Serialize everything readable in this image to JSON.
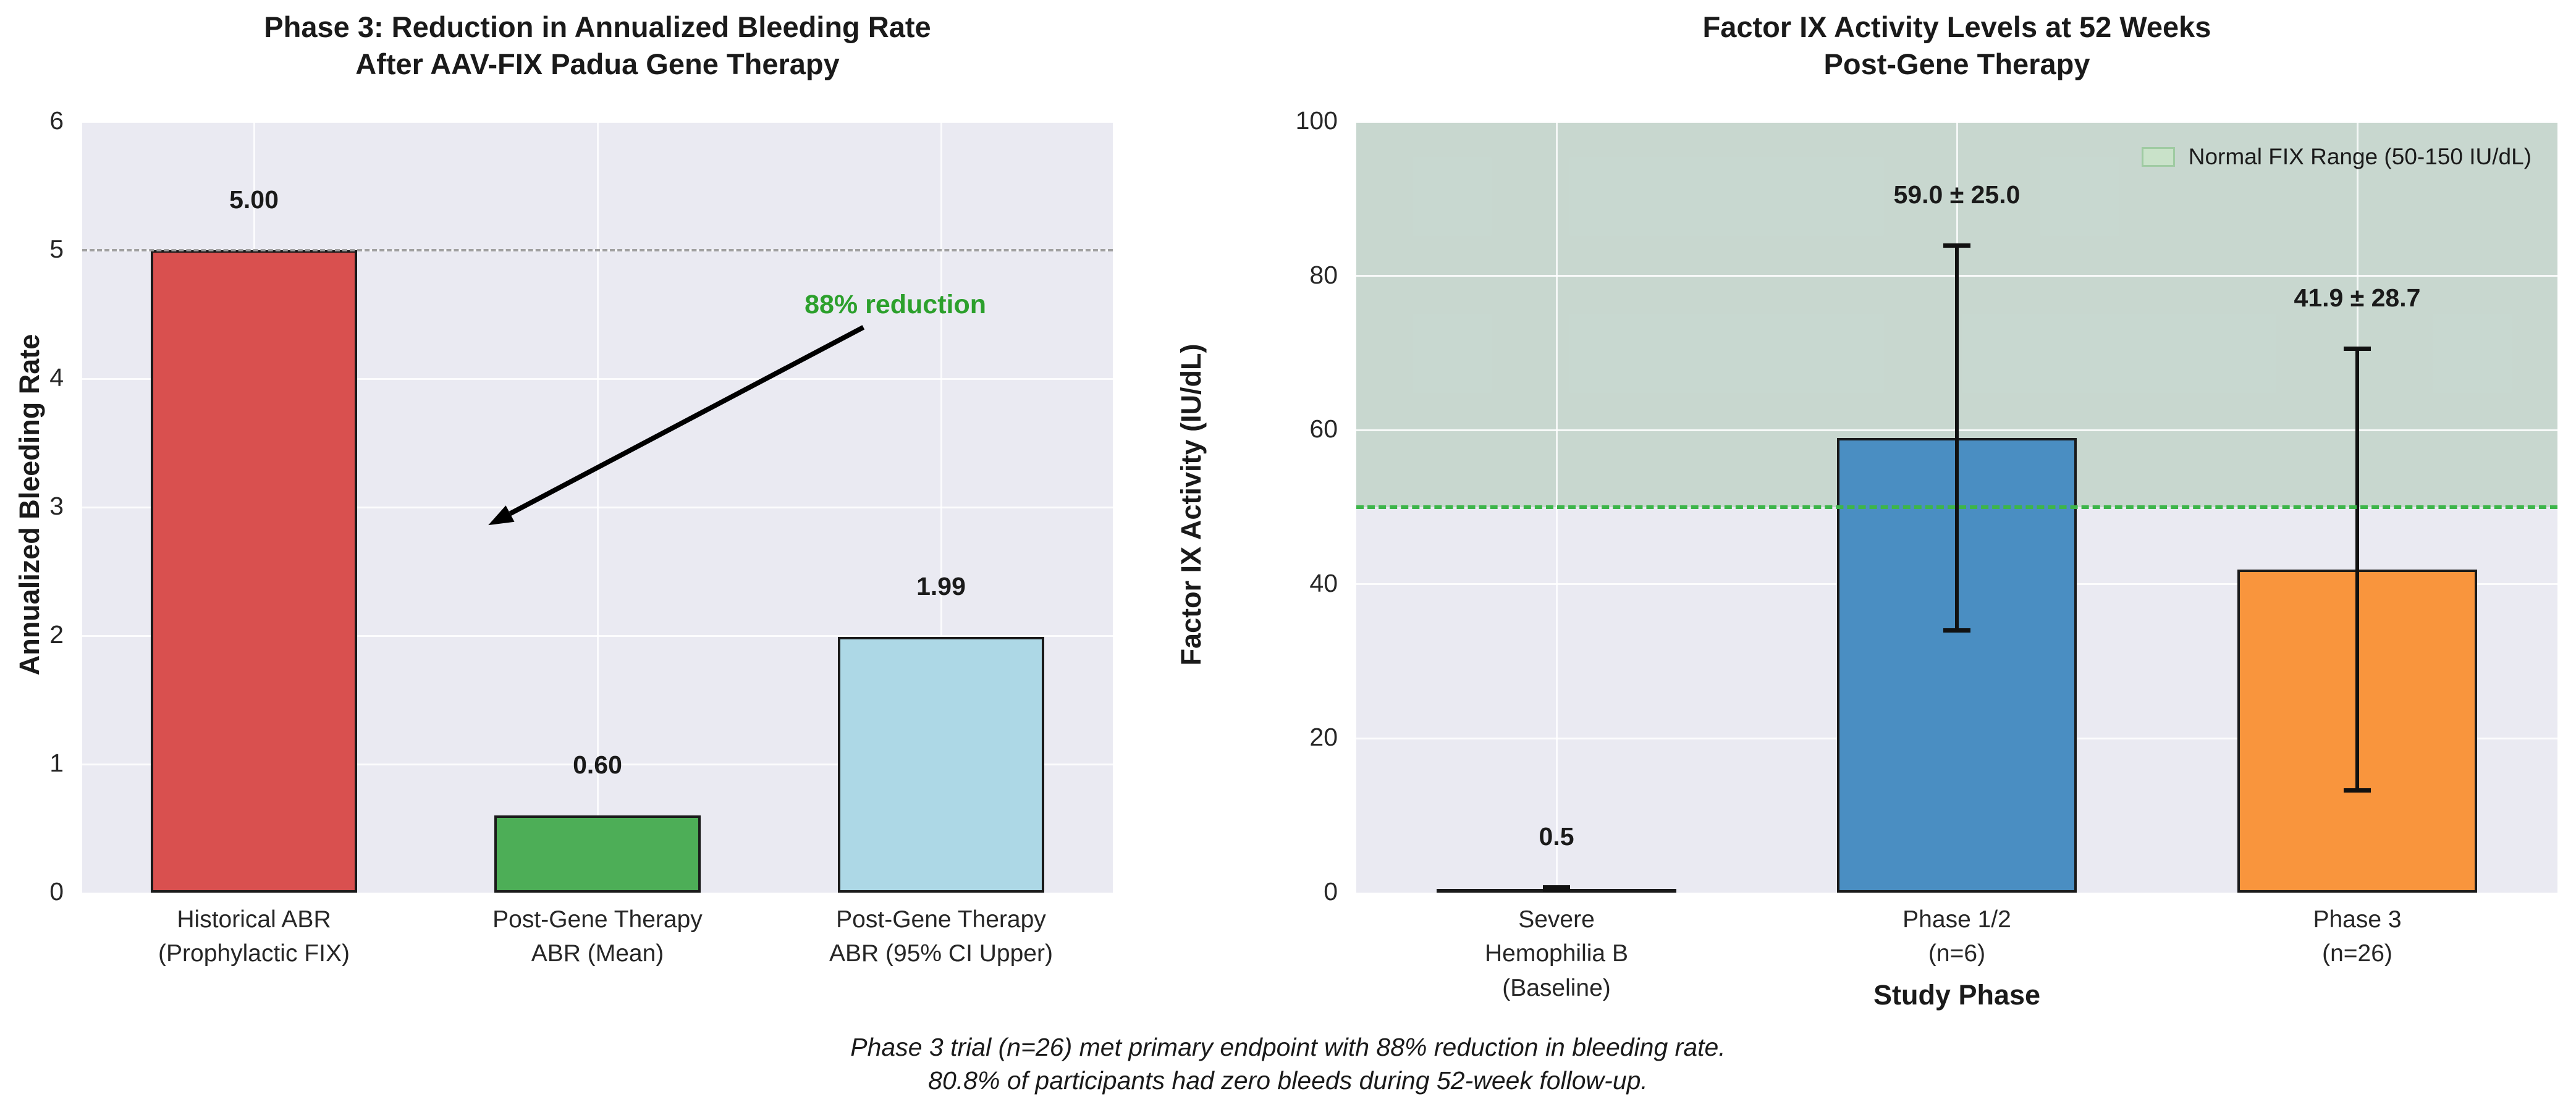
{
  "figure": {
    "background": "#ffffff",
    "plot_background": "#eaeaf2",
    "grid_color": "#ffffff"
  },
  "caption": {
    "line1": "Phase 3 trial (n=26) met primary endpoint with 88% reduction in bleeding rate.",
    "line2": "80.8% of participants had zero bleeds during 52-week follow-up."
  },
  "chart_data": [
    {
      "type": "bar",
      "title": "Phase 3: Reduction in Annualized Bleeding Rate\nAfter AAV-FIX Padua Gene Therapy",
      "xlabel": "",
      "ylabel": "Annualized Bleeding Rate",
      "ylim": [
        0,
        6
      ],
      "yticks": [
        0,
        1,
        2,
        3,
        4,
        5,
        6
      ],
      "grid": true,
      "categories": [
        "Historical ABR\n(Prophylactic FIX)",
        "Post-Gene Therapy\nABR (Mean)",
        "Post-Gene Therapy\nABR (95% CI Upper)"
      ],
      "values": [
        5.0,
        0.6,
        1.99
      ],
      "bar_labels": [
        "5.00",
        "0.60",
        "1.99"
      ],
      "bar_colors": [
        "#d9504f",
        "#4dae57",
        "#add8e6"
      ],
      "ref_line": {
        "y": 5,
        "color": "#a0a0a0",
        "width": 4
      },
      "annotation": {
        "text": "88% reduction",
        "color": "#2ca02c",
        "text_fx": 0.789,
        "text_y": 4.56,
        "arrow_from_fx": 0.758,
        "arrow_from_y": 4.4,
        "arrow_to_fx": 0.394,
        "arrow_to_y": 2.86,
        "arrow_color": "#000000"
      }
    },
    {
      "type": "bar",
      "title": "Factor IX Activity Levels at 52 Weeks\nPost-Gene Therapy",
      "xlabel": "Study Phase",
      "ylabel": "Factor IX Activity (IU/dL)",
      "ylim": [
        0,
        100
      ],
      "yticks": [
        0,
        20,
        40,
        60,
        80,
        100
      ],
      "grid": true,
      "categories": [
        "Severe\nHemophilia B\n(Baseline)",
        "Phase 1/2\n(n=6)",
        "Phase 3\n(n=26)"
      ],
      "values": [
        0.5,
        59.0,
        41.9
      ],
      "errors": [
        0.2,
        25.0,
        28.7
      ],
      "bar_labels": [
        "0.5",
        "59.0 ± 25.0",
        "41.9 ± 28.7"
      ],
      "bar_colors": [
        "#2a1316",
        "#4a8ec2",
        "#f9953d"
      ],
      "band": {
        "from": 50,
        "to": 100,
        "color": "rgba(110,168,115,0.27)"
      },
      "ref_line": {
        "y": 50,
        "color": "#3db54a",
        "width": 6
      },
      "legend": {
        "label": "Normal FIX Range (50-150 IU/dL)",
        "patch_fill": "#c9e2c9",
        "patch_border": "#9fcba2"
      }
    }
  ]
}
